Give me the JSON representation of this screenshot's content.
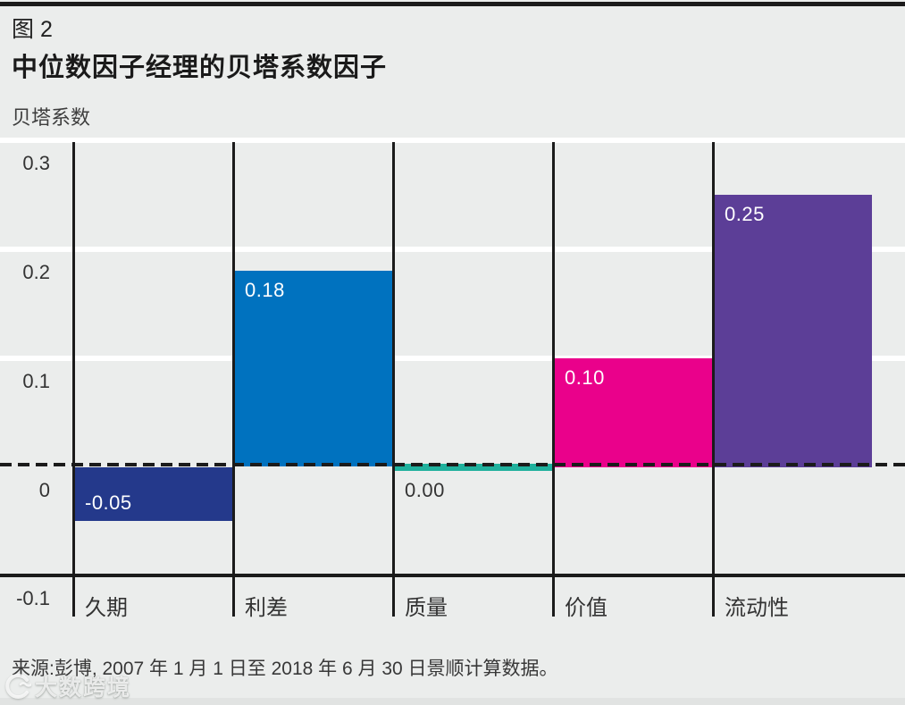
{
  "figure": {
    "label": "图 2",
    "title": "中位数因子经理的贝塔系数因子",
    "axis_title": "贝塔系数",
    "source": "来源:彭博, 2007 年 1 月 1 日至 2018 年 6 月 30 日景顺计算数据。"
  },
  "watermark": {
    "text": "大数跨境"
  },
  "colors": {
    "background": "#ebedec",
    "gridline": "#ffffff",
    "axis_black": "#1b1b1b",
    "label_dark": "#333333"
  },
  "chart_data": {
    "type": "bar",
    "title": "中位数因子经理的贝塔系数因子",
    "ylabel": "贝塔系数",
    "categories": [
      "久期",
      "利差",
      "质量",
      "价值",
      "流动性"
    ],
    "values": [
      -0.05,
      0.18,
      0,
      0.1,
      0.25
    ],
    "value_labels": [
      "-0.05",
      "0.18",
      "0.00",
      "0.10",
      "0.25"
    ],
    "bar_colors": [
      "#24398b",
      "#0072bf",
      "#20b19d",
      "#ea018b",
      "#5c3e97"
    ],
    "ylim": [
      -0.1,
      0.3
    ],
    "yticks": [
      0.3,
      0.2,
      0.1,
      0,
      -0.1
    ],
    "ytick_labels": [
      "0.3",
      "0.2",
      "0.1",
      "0",
      "-0.1"
    ],
    "zero_line_style": "dashed",
    "grid": true,
    "legend_position": "none"
  }
}
